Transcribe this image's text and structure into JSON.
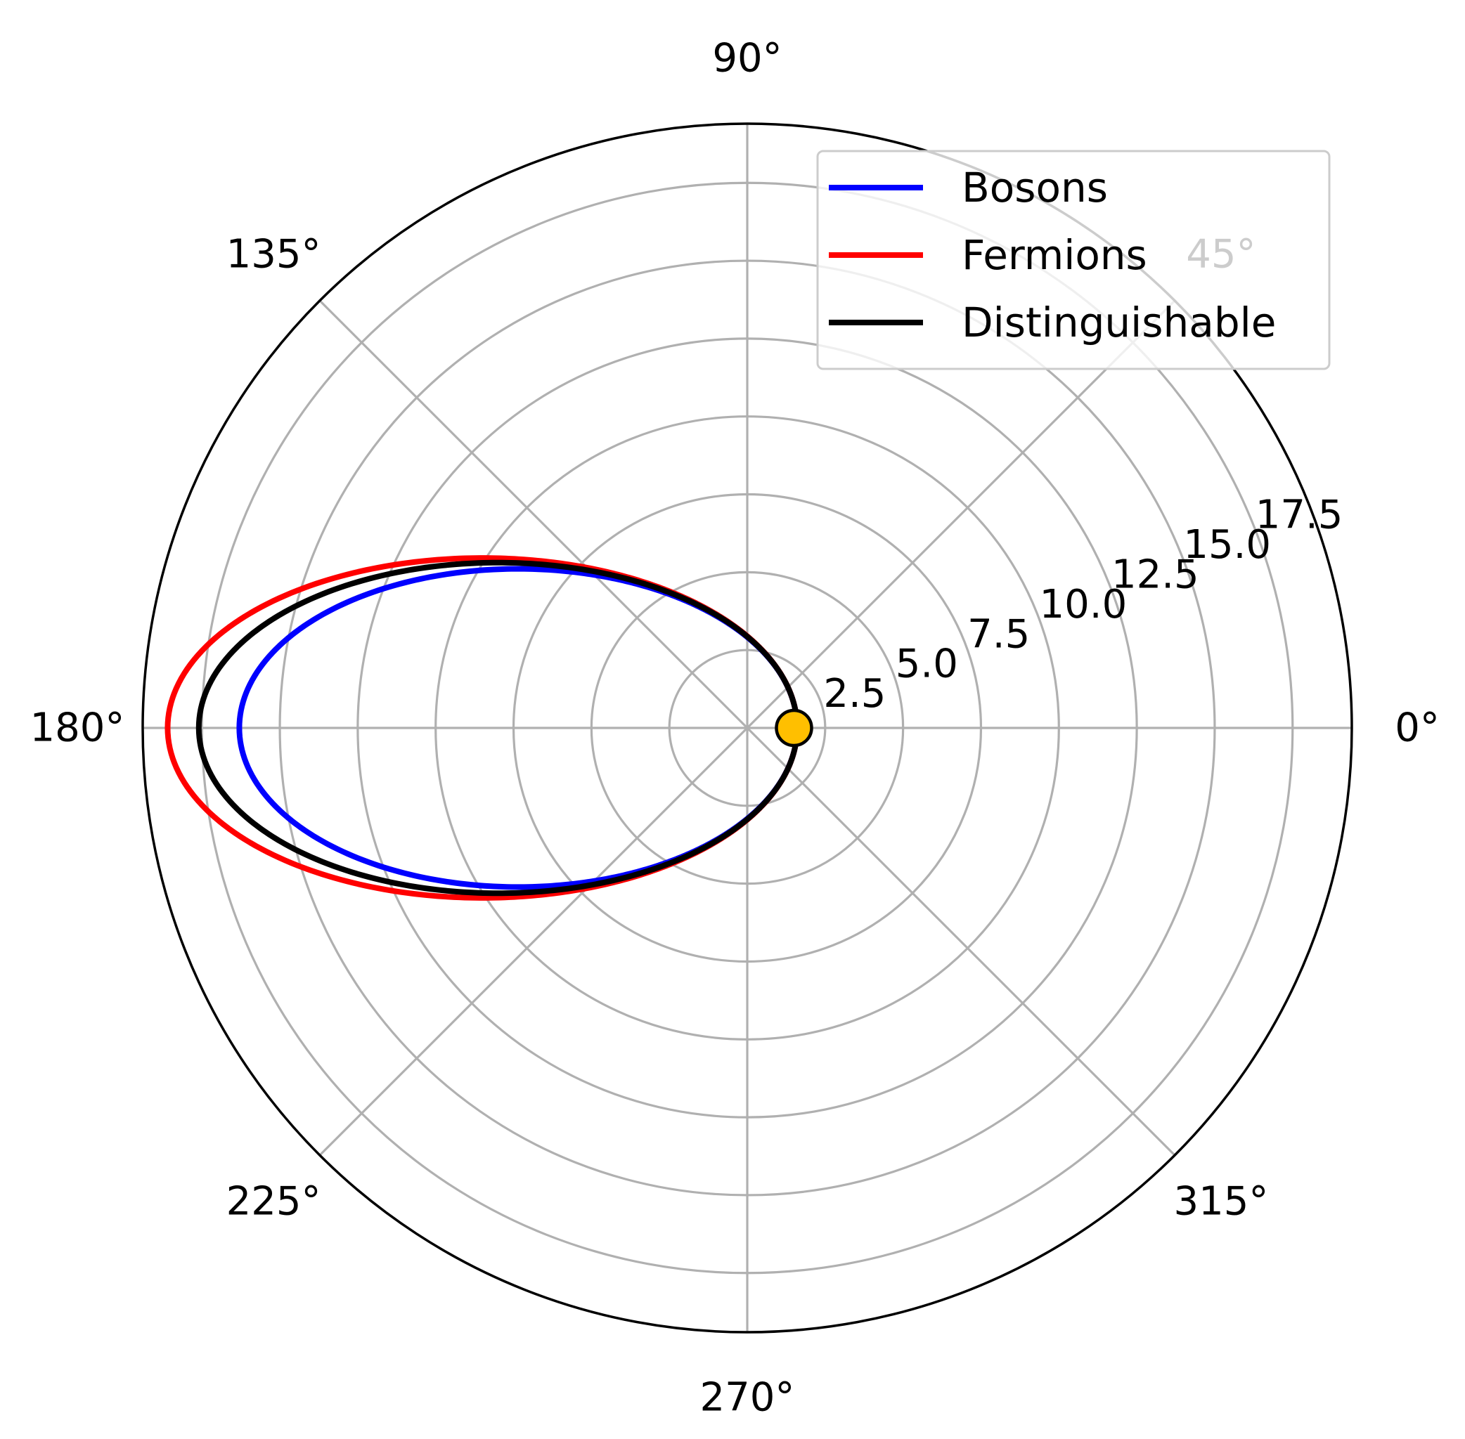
{
  "chart_data": {
    "type": "line",
    "projection": "polar",
    "title": "",
    "angular_ticks": [
      "0°",
      "45°",
      "90°",
      "135°",
      "180°",
      "225°",
      "270°",
      "315°"
    ],
    "angular_tick_values_deg": [
      0,
      45,
      90,
      135,
      180,
      225,
      270,
      315
    ],
    "radial_ticks": [
      "2.5",
      "5.0",
      "7.5",
      "10.0",
      "12.5",
      "15.0",
      "17.5"
    ],
    "radial_tick_values": [
      2.5,
      5.0,
      7.5,
      10.0,
      12.5,
      15.0,
      17.5
    ],
    "rlim": [
      0,
      19.4
    ],
    "radial_label_angle_deg": 22.5,
    "grid": true,
    "legend": {
      "placement": "top-right",
      "entries": [
        "Bosons",
        "Fermions",
        "Distinguishable"
      ]
    },
    "series": [
      {
        "name": "Bosons",
        "color": "#0000ff",
        "orbit": {
          "periapsis_r": 1.6,
          "apoapsis_r": 16.3,
          "periapsis_angle_deg": 0
        },
        "apoapsis_r_at_180deg": 16.3,
        "periapsis_r_at_0deg": 1.6
      },
      {
        "name": "Fermions",
        "color": "#ff0000",
        "orbit": {
          "periapsis_r": 1.6,
          "apoapsis_r": 18.6,
          "periapsis_angle_deg": 0
        },
        "apoapsis_r_at_180deg": 18.6,
        "periapsis_r_at_0deg": 1.6
      },
      {
        "name": "Distinguishable",
        "color": "#000000",
        "orbit": {
          "periapsis_r": 1.6,
          "apoapsis_r": 17.6,
          "periapsis_angle_deg": 0
        },
        "apoapsis_r_at_180deg": 17.6,
        "periapsis_r_at_0deg": 1.6
      }
    ],
    "markers": [
      {
        "r": 1.5,
        "theta_deg": 0,
        "color": "#ffbf00",
        "edge_color": "#000000"
      }
    ]
  }
}
